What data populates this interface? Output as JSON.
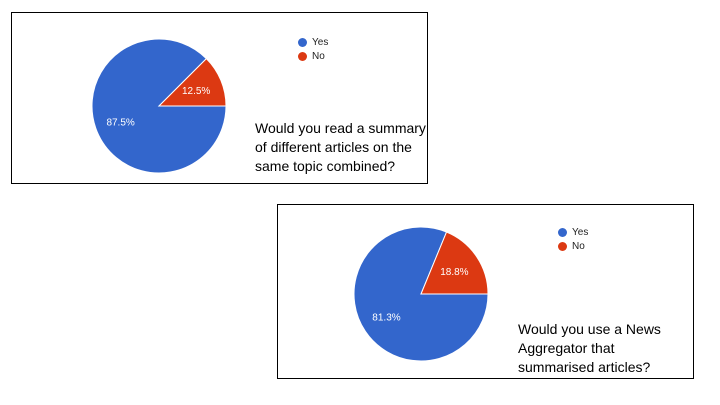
{
  "chart_data": [
    {
      "type": "pie",
      "title": "Would you read a summary of different articles on the same topic combined?",
      "categories": [
        "Yes",
        "No"
      ],
      "values": [
        87.5,
        12.5
      ],
      "value_labels": [
        "87.5%",
        "12.5%"
      ],
      "colors": [
        "#3366cc",
        "#dc3912"
      ],
      "legend": "top-right"
    },
    {
      "type": "pie",
      "title": "Would you use a News Aggregator that summarised articles?",
      "categories": [
        "Yes",
        "No"
      ],
      "values": [
        81.3,
        18.8
      ],
      "value_labels": [
        "81.3%",
        "18.8%"
      ],
      "colors": [
        "#3366cc",
        "#dc3912"
      ],
      "legend": "top-right"
    }
  ]
}
